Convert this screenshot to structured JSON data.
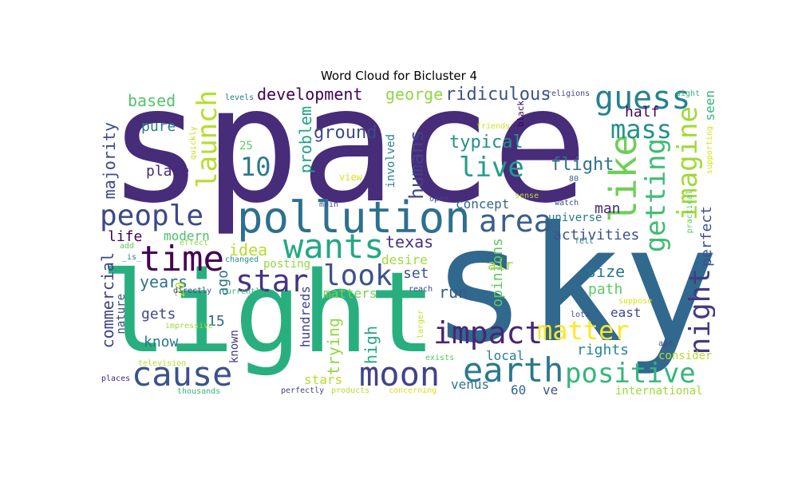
{
  "title": "Word Cloud for Bicluster 4",
  "words": [
    {
      "text": "space",
      "color": "#472c7a"
    },
    {
      "text": "sky",
      "color": "#31688e"
    },
    {
      "text": "light",
      "color": "#29af7f"
    },
    {
      "text": "pollution",
      "color": "#2d708e"
    },
    {
      "text": "time",
      "color": "#440154"
    },
    {
      "text": "cause",
      "color": "#3b528b"
    },
    {
      "text": "moon",
      "color": "#414487"
    },
    {
      "text": "earth",
      "color": "#2a788e"
    },
    {
      "text": "wants",
      "color": "#22a884"
    },
    {
      "text": "people",
      "color": "#3e4989"
    },
    {
      "text": "star",
      "color": "#46337e"
    },
    {
      "text": "look",
      "color": "#3b528b"
    },
    {
      "text": "impact",
      "color": "#482677"
    },
    {
      "text": "area",
      "color": "#355f8d"
    },
    {
      "text": "positive",
      "color": "#35b779"
    },
    {
      "text": "matter",
      "color": "#fde725"
    },
    {
      "text": "guess",
      "color": "#26828e"
    },
    {
      "text": "live",
      "color": "#1f9e89"
    },
    {
      "text": "like",
      "color": "#6ece58"
    },
    {
      "text": "mass",
      "color": "#21918c"
    },
    {
      "text": "launch",
      "color": "#b5de2b"
    },
    {
      "text": "night",
      "color": "#443983"
    },
    {
      "text": "imagine",
      "color": "#a0da39"
    },
    {
      "text": "getting",
      "color": "#3fbc73"
    },
    {
      "text": "humans",
      "color": "#414487"
    },
    {
      "text": "10",
      "color": "#2a788e"
    },
    {
      "text": "development",
      "color": "#440154"
    },
    {
      "text": "george",
      "color": "#90d743"
    },
    {
      "text": "ridiculous",
      "color": "#3b528b"
    },
    {
      "text": "based",
      "color": "#52c569"
    },
    {
      "text": "ground",
      "color": "#3e4989"
    },
    {
      "text": "typical",
      "color": "#21918c"
    },
    {
      "text": "flight",
      "color": "#2c728e"
    },
    {
      "text": "half",
      "color": "#440154"
    },
    {
      "text": "problem",
      "color": "#20a486"
    },
    {
      "text": "pure",
      "color": "#287d8e"
    },
    {
      "text": "place",
      "color": "#482878"
    },
    {
      "text": "majority",
      "color": "#3e4989"
    },
    {
      "text": "life",
      "color": "#440154"
    },
    {
      "text": "modern",
      "color": "#4ac16d"
    },
    {
      "text": "idea",
      "color": "#b5de2b"
    },
    {
      "text": "texas",
      "color": "#46337e"
    },
    {
      "text": "activities",
      "color": "#3b528b"
    },
    {
      "text": "universe",
      "color": "#2a788e"
    },
    {
      "text": "man",
      "color": "#482878"
    },
    {
      "text": "concept",
      "color": "#31688e"
    },
    {
      "text": "years",
      "color": "#2c728e"
    },
    {
      "text": "ago",
      "color": "#2c728e"
    },
    {
      "text": "commercial",
      "color": "#414487"
    },
    {
      "text": "set",
      "color": "#3b528b"
    },
    {
      "text": "desire",
      "color": "#a0da39"
    },
    {
      "text": "run",
      "color": "#38598c"
    },
    {
      "text": "size",
      "color": "#2a788e"
    },
    {
      "text": "path",
      "color": "#5ec962"
    },
    {
      "text": "gets",
      "color": "#3e4989"
    },
    {
      "text": "15",
      "color": "#31688e"
    },
    {
      "text": "know",
      "color": "#2a788e"
    },
    {
      "text": "trying",
      "color": "#90d743"
    },
    {
      "text": "high",
      "color": "#22a884"
    },
    {
      "text": "opinions",
      "color": "#5ec962"
    },
    {
      "text": "rights",
      "color": "#24878e"
    },
    {
      "text": "east",
      "color": "#3e4989"
    },
    {
      "text": "local",
      "color": "#287d8e"
    },
    {
      "text": "stars",
      "color": "#b5de2b"
    },
    {
      "text": "venus",
      "color": "#2c728e"
    },
    {
      "text": "60",
      "color": "#31688e"
    },
    {
      "text": "ve",
      "color": "#3b528b"
    },
    {
      "text": "international",
      "color": "#9fda3a"
    },
    {
      "text": "consider",
      "color": "#b5de2b"
    },
    {
      "text": "perfect",
      "color": "#3b528b"
    },
    {
      "text": "seen",
      "color": "#35b779"
    },
    {
      "text": "matters",
      "color": "#73d056"
    },
    {
      "text": "posting",
      "color": "#90d743"
    },
    {
      "text": "air",
      "color": "#9fda3a"
    },
    {
      "text": "20",
      "color": "#b5de2b"
    },
    {
      "text": "hundreds",
      "color": "#414487"
    },
    {
      "text": "known",
      "color": "#443983"
    },
    {
      "text": "nature",
      "color": "#3e4989"
    },
    {
      "text": "involved",
      "color": "#26828e"
    },
    {
      "text": "25",
      "color": "#5ec962"
    },
    {
      "text": "view",
      "color": "#d8e219"
    },
    {
      "text": "levels",
      "color": "#2a788e"
    },
    {
      "text": "religions",
      "color": "#3e4989"
    },
    {
      "text": "sight",
      "color": "#35b779"
    },
    {
      "text": "black",
      "color": "#440154"
    },
    {
      "text": "friends",
      "color": "#c8e020"
    },
    {
      "text": "quickly",
      "color": "#c8e020"
    },
    {
      "text": "supporting",
      "color": "#d8e219"
    },
    {
      "text": "practical",
      "color": "#5ec962"
    },
    {
      "text": "80",
      "color": "#31688e"
    },
    {
      "text": "watch",
      "color": "#3b528b"
    },
    {
      "text": "sense",
      "color": "#b5de2b"
    },
    {
      "text": "open",
      "color": "#3e4989"
    },
    {
      "text": "main",
      "color": "#3b528b"
    },
    {
      "text": "felt",
      "color": "#2a788e"
    },
    {
      "text": "add",
      "color": "#5ec962"
    },
    {
      "text": "_is_",
      "color": "#26828e"
    },
    {
      "text": "changed",
      "color": "#21918c"
    },
    {
      "text": "effect",
      "color": "#90d743"
    },
    {
      "text": "directly",
      "color": "#414487"
    },
    {
      "text": "currently",
      "color": "#35b779"
    },
    {
      "text": "reach",
      "color": "#3e4989"
    },
    {
      "text": "suppose",
      "color": "#d8e219"
    },
    {
      "text": "impressive",
      "color": "#9fda3a"
    },
    {
      "text": "larger",
      "color": "#c8e020"
    },
    {
      "text": "lots",
      "color": "#3b528b"
    },
    {
      "text": "age",
      "color": "#3b528b"
    },
    {
      "text": "exists",
      "color": "#52c569"
    },
    {
      "text": "television",
      "color": "#b5de2b"
    },
    {
      "text": "places",
      "color": "#482878"
    },
    {
      "text": "thousands",
      "color": "#35b779"
    },
    {
      "text": "perfectly",
      "color": "#414487"
    },
    {
      "text": "products",
      "color": "#b5de2b"
    },
    {
      "text": "concerning",
      "color": "#d8e219"
    }
  ]
}
